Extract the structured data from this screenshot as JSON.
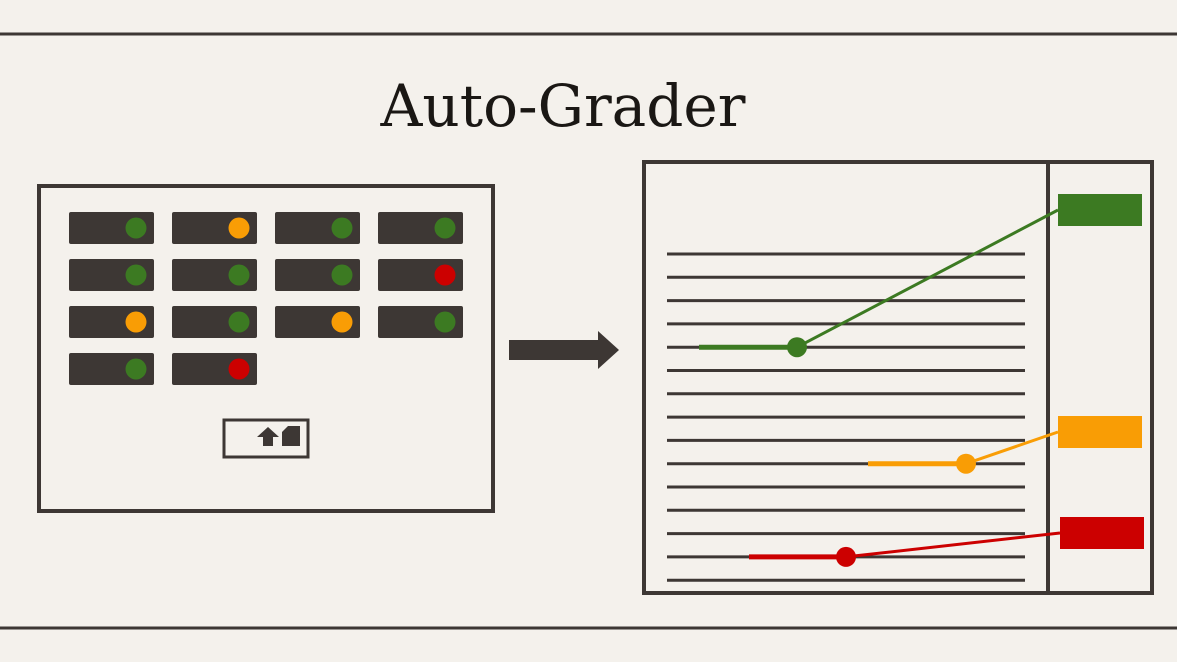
{
  "title": "Auto-Grader",
  "colors": {
    "background": "#f4f1ec",
    "ink": "#3d3734",
    "pass": "#3c7a22",
    "partial": "#f99d05",
    "fail": "#cc0000"
  },
  "submissions": {
    "statuses": [
      "pass",
      "partial",
      "pass",
      "pass",
      "pass",
      "pass",
      "pass",
      "fail",
      "partial",
      "pass",
      "partial",
      "pass",
      "pass",
      "fail"
    ],
    "upload_icon": "upload-icon"
  },
  "arrow_icon": "right-arrow-icon",
  "code_view": {
    "line_count": 15,
    "markers": [
      {
        "status": "pass",
        "line": 5
      },
      {
        "status": "partial",
        "line": 10
      },
      {
        "status": "fail",
        "line": 14
      }
    ]
  },
  "feedback_labels": [
    "pass",
    "partial",
    "fail"
  ]
}
